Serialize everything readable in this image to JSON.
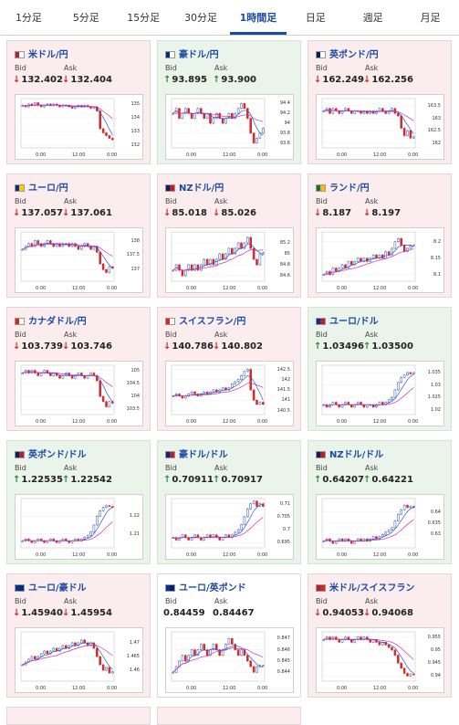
{
  "tabs": [
    {
      "label": "1分足"
    },
    {
      "label": "5分足"
    },
    {
      "label": "15分足"
    },
    {
      "label": "30分足"
    },
    {
      "label": "1時間足",
      "active": true
    },
    {
      "label": "日足"
    },
    {
      "label": "週足"
    },
    {
      "label": "月足"
    }
  ],
  "labels": {
    "bid": "Bid",
    "ask": "Ask"
  },
  "pairs": [
    {
      "name": "米ドル/円",
      "trend": "down",
      "bid": "132.402",
      "ask": "132.404",
      "bid_dir": "down",
      "ask_dir": "down",
      "flag": [
        "#b22234",
        "#ffffff"
      ],
      "yticks": [
        "135",
        "134",
        "133",
        "132"
      ],
      "xticks": [
        "0:00",
        "12:00",
        "0:00"
      ],
      "series": [
        134.9,
        134.8,
        135.0,
        134.9,
        135.1,
        134.9,
        134.8,
        134.9,
        135.0,
        134.9,
        135.0,
        134.9,
        134.8,
        134.9,
        134.9,
        134.8,
        134.7,
        134.8,
        134.9,
        134.8,
        134.9,
        134.8,
        134.7,
        134.8,
        134.5,
        133.2,
        132.9,
        132.7,
        132.5,
        132.4
      ],
      "ymin": 131.8,
      "ymax": 135.4
    },
    {
      "name": "豪ドル/円",
      "trend": "up",
      "bid": "93.895",
      "ask": "93.900",
      "bid_dir": "up",
      "ask_dir": "up",
      "flag": [
        "#0a2a7a",
        "#ffffff"
      ],
      "yticks": [
        "94.4",
        "94.2",
        "94",
        "93.8",
        "93.6"
      ],
      "xticks": [
        "0:00",
        "12:00",
        "0:00"
      ],
      "series": [
        94.2,
        94.3,
        94.1,
        94.2,
        94.3,
        94.2,
        94.1,
        94.2,
        94.3,
        94.2,
        94.1,
        94.2,
        94.0,
        94.1,
        94.2,
        94.1,
        94.0,
        94.1,
        94.2,
        94.1,
        94.2,
        94.3,
        94.4,
        94.3,
        94.1,
        93.8,
        93.6,
        93.7,
        93.8,
        93.9
      ],
      "ymin": 93.5,
      "ymax": 94.5
    },
    {
      "name": "英ポンド/円",
      "trend": "down",
      "bid": "162.249",
      "ask": "162.256",
      "bid_dir": "down",
      "ask_dir": "down",
      "flag": [
        "#012169",
        "#ffffff"
      ],
      "yticks": [
        "163.5",
        "163",
        "162.5",
        "162"
      ],
      "xticks": [
        "0:00",
        "12:00",
        "0:00"
      ],
      "series": [
        163.3,
        163.4,
        163.2,
        163.4,
        163.3,
        163.2,
        163.3,
        163.4,
        163.3,
        163.2,
        163.3,
        163.3,
        163.2,
        163.3,
        163.2,
        163.3,
        163.2,
        163.3,
        163.4,
        163.3,
        163.2,
        163.3,
        163.4,
        163.2,
        163.1,
        162.6,
        162.3,
        162.5,
        162.2,
        162.25
      ],
      "ymin": 161.8,
      "ymax": 163.8
    },
    {
      "name": "ユーロ/円",
      "trend": "down",
      "bid": "137.057",
      "ask": "137.061",
      "bid_dir": "down",
      "ask_dir": "down",
      "flag": [
        "#003399",
        "#ffcc00"
      ],
      "yticks": [
        "138",
        "137.5",
        "137"
      ],
      "xticks": [
        "0:00",
        "12:00",
        "0:00"
      ],
      "series": [
        137.7,
        137.8,
        137.9,
        137.8,
        138.0,
        137.9,
        137.8,
        137.9,
        138.0,
        137.9,
        137.8,
        137.9,
        137.8,
        137.9,
        137.9,
        137.8,
        137.9,
        137.8,
        137.7,
        137.8,
        137.9,
        137.8,
        137.7,
        137.8,
        137.6,
        137.2,
        137.0,
        136.9,
        137.1,
        137.05
      ],
      "ymin": 136.6,
      "ymax": 138.3
    },
    {
      "name": "NZドル/円",
      "trend": "down",
      "bid": "85.018",
      "ask": "85.026",
      "bid_dir": "down",
      "ask_dir": "down",
      "flag": [
        "#012169",
        "#cc142b"
      ],
      "yticks": [
        "85.2",
        "85",
        "84.8",
        "84.6"
      ],
      "xticks": [
        "0:00",
        "12:00",
        "0:00"
      ],
      "series": [
        84.7,
        84.8,
        84.7,
        84.6,
        84.7,
        84.8,
        84.7,
        84.8,
        84.7,
        84.8,
        84.9,
        84.8,
        84.9,
        84.8,
        84.9,
        85.0,
        84.9,
        85.0,
        85.1,
        85.0,
        85.1,
        85.2,
        85.1,
        85.2,
        85.3,
        85.1,
        84.9,
        84.8,
        85.0,
        85.02
      ],
      "ymin": 84.5,
      "ymax": 85.4
    },
    {
      "name": "ランド/円",
      "trend": "down",
      "bid": "8.187",
      "ask": "8.197",
      "bid_dir": "down",
      "ask_dir": "down",
      "flag": [
        "#007a4d",
        "#ffb612"
      ],
      "yticks": [
        "8.2",
        "8.15",
        "8.1"
      ],
      "xticks": [
        "0:00",
        "12:00",
        "0:00"
      ],
      "series": [
        8.1,
        8.11,
        8.1,
        8.12,
        8.11,
        8.12,
        8.13,
        8.12,
        8.14,
        8.13,
        8.14,
        8.15,
        8.14,
        8.15,
        8.14,
        8.15,
        8.16,
        8.15,
        8.16,
        8.15,
        8.17,
        8.16,
        8.18,
        8.2,
        8.21,
        8.19,
        8.17,
        8.18,
        8.19,
        8.19
      ],
      "ymin": 8.08,
      "ymax": 8.23
    },
    {
      "name": "カナダドル/円",
      "trend": "down",
      "bid": "103.739",
      "ask": "103.746",
      "bid_dir": "down",
      "ask_dir": "down",
      "flag": [
        "#d52b1e",
        "#ffffff"
      ],
      "yticks": [
        "105",
        "104.5",
        "104",
        "103.5"
      ],
      "xticks": [
        "0:00",
        "12:00",
        "0:00"
      ],
      "series": [
        104.9,
        105.0,
        104.9,
        105.0,
        104.9,
        104.8,
        104.9,
        105.0,
        104.9,
        104.8,
        104.9,
        104.8,
        104.7,
        104.8,
        104.9,
        104.8,
        104.7,
        104.8,
        104.9,
        104.8,
        104.7,
        104.8,
        104.9,
        104.8,
        104.6,
        104.0,
        103.8,
        103.6,
        103.8,
        103.74
      ],
      "ymin": 103.3,
      "ymax": 105.2
    },
    {
      "name": "スイスフラン/円",
      "trend": "down",
      "bid": "140.786",
      "ask": "140.802",
      "bid_dir": "down",
      "ask_dir": "down",
      "flag": [
        "#d52b1e",
        "#ffffff"
      ],
      "yticks": [
        "142.5",
        "142",
        "141.5",
        "141",
        "140.5"
      ],
      "xticks": [
        "0:00",
        "12:00",
        "0:00"
      ],
      "series": [
        141.2,
        141.3,
        141.2,
        141.1,
        141.2,
        141.3,
        141.4,
        141.3,
        141.2,
        141.3,
        141.4,
        141.3,
        141.4,
        141.5,
        141.4,
        141.5,
        141.6,
        141.5,
        141.6,
        141.8,
        141.9,
        142.0,
        142.2,
        142.4,
        142.5,
        141.5,
        141.0,
        140.8,
        140.9,
        140.8
      ],
      "ymin": 140.3,
      "ymax": 142.7
    },
    {
      "name": "ユーロ/ドル",
      "trend": "up",
      "bid": "1.03496",
      "ask": "1.03500",
      "bid_dir": "up",
      "ask_dir": "up",
      "flag": [
        "#003399",
        "#b22234"
      ],
      "yticks": [
        "1.035",
        "1.03",
        "1.025",
        "1.02"
      ],
      "xticks": [
        "0:00",
        "12:00",
        "0:00"
      ],
      "series": [
        1.022,
        1.021,
        1.022,
        1.023,
        1.022,
        1.021,
        1.022,
        1.023,
        1.022,
        1.021,
        1.022,
        1.023,
        1.022,
        1.021,
        1.022,
        1.022,
        1.021,
        1.022,
        1.023,
        1.022,
        1.023,
        1.024,
        1.025,
        1.028,
        1.031,
        1.033,
        1.034,
        1.035,
        1.0345,
        1.035
      ],
      "ymin": 1.018,
      "ymax": 1.038
    },
    {
      "name": "英ポンド/ドル",
      "trend": "up",
      "bid": "1.22535",
      "ask": "1.22542",
      "bid_dir": "up",
      "ask_dir": "up",
      "flag": [
        "#012169",
        "#b22234"
      ],
      "yticks": [
        "1.22",
        "1.21"
      ],
      "xticks": [
        "0:00",
        "12:00",
        "0:00"
      ],
      "series": [
        1.206,
        1.207,
        1.206,
        1.205,
        1.206,
        1.207,
        1.206,
        1.205,
        1.206,
        1.207,
        1.206,
        1.205,
        1.206,
        1.207,
        1.206,
        1.205,
        1.206,
        1.207,
        1.206,
        1.207,
        1.208,
        1.209,
        1.211,
        1.215,
        1.22,
        1.223,
        1.225,
        1.226,
        1.2255,
        1.2254
      ],
      "ymin": 1.202,
      "ymax": 1.23
    },
    {
      "name": "豪ドル/ドル",
      "trend": "up",
      "bid": "0.70911",
      "ask": "0.70917",
      "bid_dir": "up",
      "ask_dir": "up",
      "flag": [
        "#0a2a7a",
        "#b22234"
      ],
      "yticks": [
        "0.71",
        "0.705",
        "0.7",
        "0.695"
      ],
      "xticks": [
        "0:00",
        "12:00",
        "0:00"
      ],
      "series": [
        0.697,
        0.696,
        0.697,
        0.698,
        0.697,
        0.696,
        0.697,
        0.698,
        0.697,
        0.696,
        0.697,
        0.698,
        0.697,
        0.698,
        0.697,
        0.696,
        0.697,
        0.698,
        0.697,
        0.698,
        0.699,
        0.7,
        0.702,
        0.705,
        0.708,
        0.71,
        0.711,
        0.709,
        0.71,
        0.709
      ],
      "ymin": 0.693,
      "ymax": 0.712
    },
    {
      "name": "NZドル/ドル",
      "trend": "up",
      "bid": "0.64207",
      "ask": "0.64221",
      "bid_dir": "up",
      "ask_dir": "up",
      "flag": [
        "#012169",
        "#b22234"
      ],
      "yticks": [
        "0.64",
        "0.635",
        "0.63"
      ],
      "xticks": [
        "0:00",
        "12:00",
        "0:00"
      ],
      "series": [
        0.627,
        0.628,
        0.627,
        0.626,
        0.627,
        0.628,
        0.627,
        0.628,
        0.627,
        0.626,
        0.627,
        0.628,
        0.627,
        0.628,
        0.627,
        0.628,
        0.629,
        0.628,
        0.629,
        0.63,
        0.631,
        0.632,
        0.633,
        0.636,
        0.639,
        0.641,
        0.643,
        0.642,
        0.6425,
        0.642
      ],
      "ymin": 0.624,
      "ymax": 0.646
    },
    {
      "name": "ユーロ/豪ドル",
      "trend": "down",
      "bid": "1.45940",
      "ask": "1.45954",
      "bid_dir": "down",
      "ask_dir": "down",
      "flag": [
        "#003399",
        "#0a2a7a"
      ],
      "yticks": [
        "1.47",
        "1.465",
        "1.46"
      ],
      "xticks": [
        "0:00",
        "12:00",
        "0:00"
      ],
      "series": [
        1.462,
        1.463,
        1.464,
        1.465,
        1.464,
        1.465,
        1.466,
        1.467,
        1.466,
        1.467,
        1.468,
        1.467,
        1.468,
        1.469,
        1.468,
        1.469,
        1.47,
        1.469,
        1.47,
        1.471,
        1.47,
        1.469,
        1.47,
        1.468,
        1.465,
        1.462,
        1.46,
        1.461,
        1.459,
        1.4594
      ],
      "ymin": 1.456,
      "ymax": 1.474
    },
    {
      "name": "ユーロ/英ポンド",
      "trend": "flat",
      "bid": "0.84459",
      "ask": "0.84467",
      "bid_dir": "none",
      "ask_dir": "none",
      "flag": [
        "#003399",
        "#012169"
      ],
      "yticks": [
        "0.847",
        "0.846",
        "0.845",
        "0.844"
      ],
      "xticks": [
        "0:00",
        "12:00",
        "0:00"
      ],
      "series": [
        0.844,
        0.8445,
        0.845,
        0.8455,
        0.845,
        0.8455,
        0.846,
        0.8455,
        0.846,
        0.8465,
        0.846,
        0.8455,
        0.846,
        0.8465,
        0.846,
        0.8455,
        0.846,
        0.8465,
        0.847,
        0.8465,
        0.846,
        0.8455,
        0.846,
        0.8455,
        0.845,
        0.8445,
        0.844,
        0.8445,
        0.8446,
        0.8446
      ],
      "ymin": 0.8432,
      "ymax": 0.8476
    },
    {
      "name": "米ドル/スイスフラン",
      "trend": "down",
      "bid": "0.94053",
      "ask": "0.94068",
      "bid_dir": "down",
      "ask_dir": "down",
      "flag": [
        "#b22234",
        "#d52b1e"
      ],
      "yticks": [
        "0.955",
        "0.95",
        "0.945",
        "0.94"
      ],
      "xticks": [
        "0:00",
        "12:00",
        "0:00"
      ],
      "series": [
        0.954,
        0.955,
        0.954,
        0.955,
        0.954,
        0.953,
        0.954,
        0.955,
        0.954,
        0.953,
        0.954,
        0.955,
        0.954,
        0.955,
        0.954,
        0.953,
        0.954,
        0.953,
        0.952,
        0.953,
        0.952,
        0.951,
        0.95,
        0.948,
        0.945,
        0.943,
        0.941,
        0.94,
        0.9408,
        0.9406
      ],
      "ymin": 0.938,
      "ymax": 0.957
    }
  ],
  "colors": {
    "up": "#2e8b3a",
    "down": "#d12b2b",
    "ma_pink": "#cc33aa",
    "ma_blue": "#3355cc",
    "link": "#1a4aa8"
  }
}
